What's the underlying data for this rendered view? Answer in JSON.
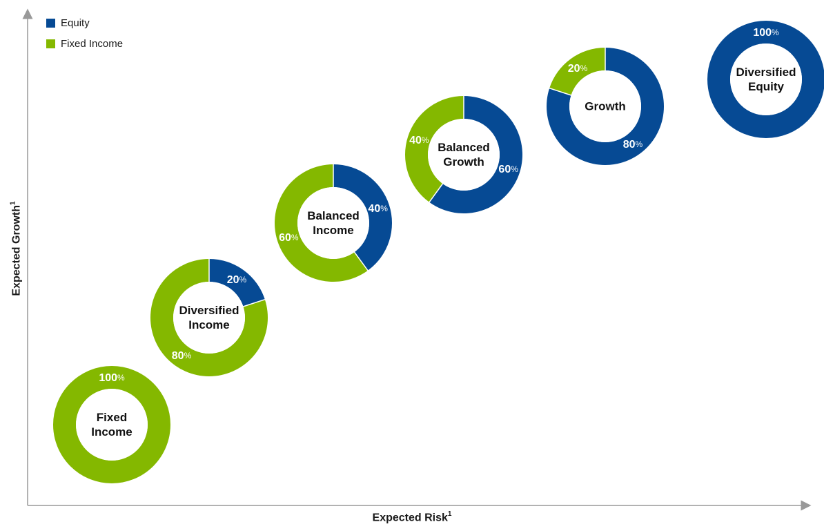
{
  "legend": [
    {
      "name": "Equity",
      "color": "#064a94"
    },
    {
      "name": "Fixed Income",
      "color": "#84b800"
    }
  ],
  "axes": {
    "x_label": "Expected Risk",
    "y_label": "Expected Growth",
    "footnote_marker": "1"
  },
  "percent_suffix": "%",
  "chart_data": {
    "type": "pie",
    "variant": "donut",
    "x_ticks": "none",
    "y_ticks": "none",
    "grid": false,
    "legend_position": "top-left",
    "portfolios": [
      {
        "name": "Fixed Income",
        "label_lines": [
          "Fixed",
          "Income"
        ],
        "equity": 0,
        "fixed_income": 100
      },
      {
        "name": "Diversified Income",
        "label_lines": [
          "Diversified",
          "Income"
        ],
        "equity": 20,
        "fixed_income": 80
      },
      {
        "name": "Balanced Income",
        "label_lines": [
          "Balanced",
          "Income"
        ],
        "equity": 40,
        "fixed_income": 60
      },
      {
        "name": "Balanced Growth",
        "label_lines": [
          "Balanced",
          "Growth"
        ],
        "equity": 60,
        "fixed_income": 40
      },
      {
        "name": "Growth",
        "label_lines": [
          "Growth"
        ],
        "equity": 80,
        "fixed_income": 20
      },
      {
        "name": "Diversified Equity",
        "label_lines": [
          "Diversified",
          "Equity"
        ],
        "equity": 100,
        "fixed_income": 0
      }
    ]
  }
}
